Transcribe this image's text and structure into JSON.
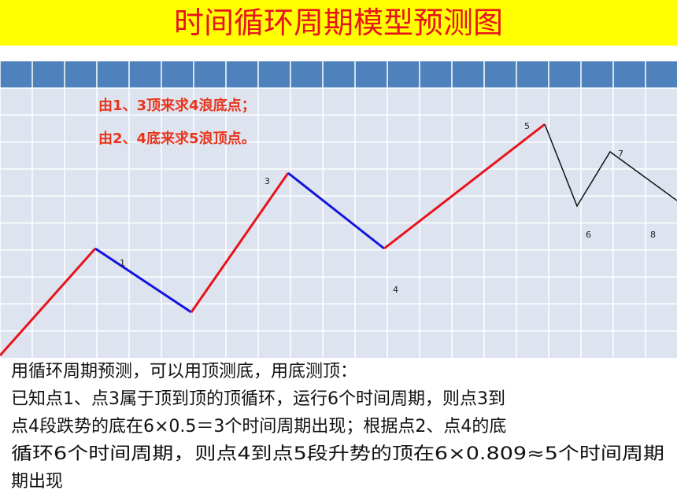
{
  "title": "时间循环周期模型预测图",
  "notes": [
    "由1、3顶来求4浪底点；",
    "由2、4底来求5浪顶点。"
  ],
  "point_labels": [
    "1",
    "3",
    "4",
    "5",
    "6",
    "7",
    "8"
  ],
  "body": [
    "用循环周期预测，可以用顶测底，用底测顶：",
    "已知点1、点3属于顶到顶的顶循环，运行6个时间周期，则点3到",
    "点4段跌势的底在6×0.5＝3个时间周期出现；根据点2、点4的底",
    "循环6个时间周期，则点4到点5段升势的顶在6×0.809≈5个时间周期",
    "期出现"
  ]
}
